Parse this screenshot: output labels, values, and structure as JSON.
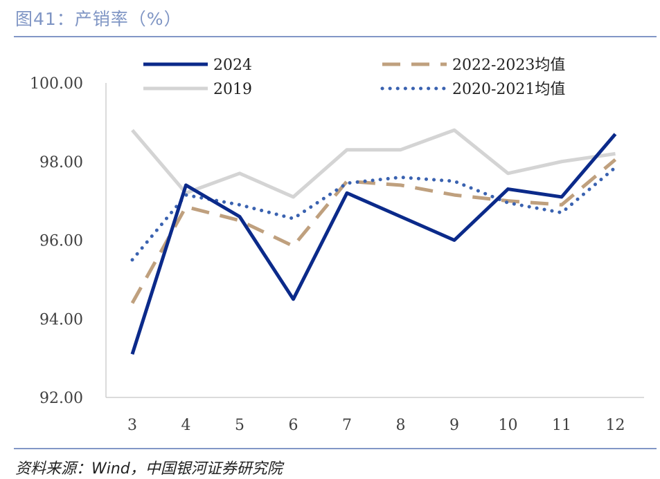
{
  "header": {
    "title": "图41：产销率（%）"
  },
  "footer": {
    "source": "资料来源：Wind，中国银河证券研究院"
  },
  "chart_data": {
    "type": "line",
    "title": "产销率（%）",
    "xlabel": "",
    "ylabel": "",
    "categories": [
      "3",
      "4",
      "5",
      "6",
      "7",
      "8",
      "9",
      "10",
      "11",
      "12"
    ],
    "y_ticks": [
      "92.00",
      "94.00",
      "96.00",
      "98.00",
      "100.00"
    ],
    "ylim": [
      92,
      100
    ],
    "grid": false,
    "legend_position": "top",
    "series": [
      {
        "name": "2024",
        "color": "#0b2a8a",
        "style": "solid",
        "values": [
          93.1,
          97.4,
          96.6,
          94.5,
          97.2,
          96.6,
          96.0,
          97.3,
          97.1,
          98.7
        ]
      },
      {
        "name": "2022-2023均值",
        "color": "#bfa07e",
        "style": "dashed",
        "values": [
          94.4,
          96.85,
          96.5,
          95.85,
          97.5,
          97.4,
          97.15,
          97.0,
          96.9,
          98.05
        ]
      },
      {
        "name": "2019",
        "color": "#d4d4d4",
        "style": "solid",
        "values": [
          98.8,
          97.2,
          97.7,
          97.1,
          98.3,
          98.3,
          98.8,
          97.7,
          98.0,
          98.2
        ]
      },
      {
        "name": "2020-2021均值",
        "color": "#3a62b0",
        "style": "dotted",
        "values": [
          95.5,
          97.15,
          96.9,
          96.55,
          97.45,
          97.6,
          97.5,
          96.95,
          96.7,
          97.85
        ]
      }
    ]
  }
}
